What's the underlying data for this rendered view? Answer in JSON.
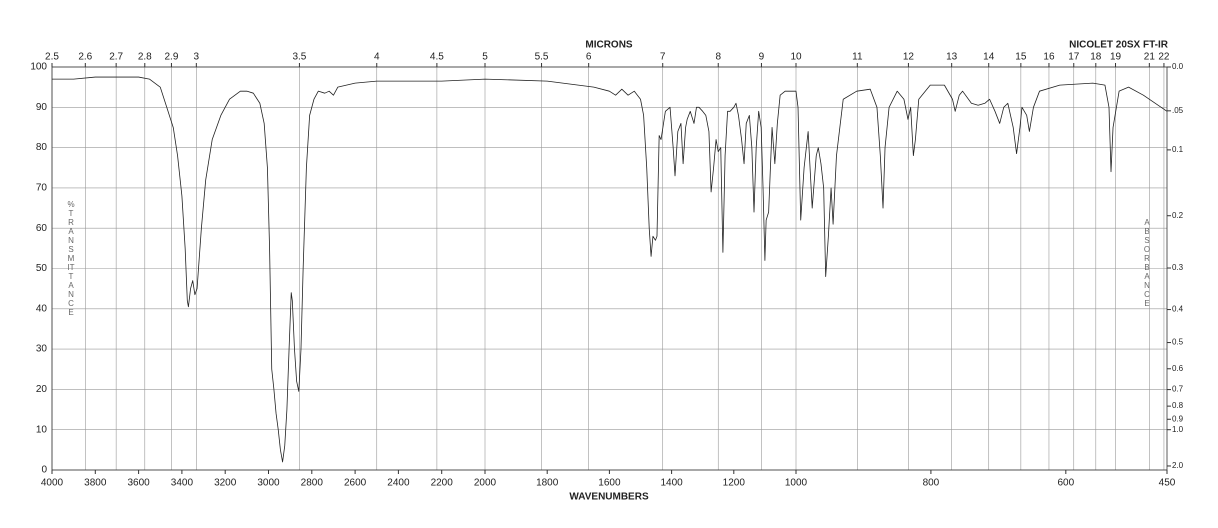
{
  "chart_data": {
    "type": "line",
    "title": "MICRONS",
    "xlabel": "WAVENUMBERS",
    "ylabel": "%TRANSMITTANCE",
    "y2label": "ABSORBANCE",
    "instrument": "NICOLET 20SX FT-IR",
    "color": "#222222",
    "grid": true,
    "xlim": [
      4000,
      450
    ],
    "ylim": [
      0,
      100
    ],
    "xticks": [
      4000,
      3800,
      3600,
      3400,
      3200,
      3000,
      2800,
      2600,
      2400,
      2200,
      2000,
      1800,
      1600,
      1400,
      1200,
      1000,
      800,
      600,
      450
    ],
    "yticks": [
      0,
      10,
      20,
      30,
      40,
      50,
      60,
      70,
      80,
      90,
      100
    ],
    "x2ticks": [
      2.5,
      2.6,
      2.7,
      2.8,
      2.9,
      3,
      3.5,
      4,
      4.5,
      5,
      5.5,
      6,
      7,
      8,
      9,
      10,
      11,
      12,
      13,
      14,
      15,
      16,
      17,
      18,
      19,
      21,
      22
    ],
    "y2ticks": [
      {
        "value": 0,
        "label": "0.0"
      },
      {
        "value": 0.05,
        "label": ".05"
      },
      0.1,
      0.2,
      0.3,
      0.4,
      0.5,
      0.6,
      0.7,
      0.8,
      0.9,
      {
        "value": 1,
        "label": "1.0"
      },
      {
        "value": 2,
        "label": "2.0"
      }
    ],
    "x": [
      4000,
      3900,
      3800,
      3700,
      3600,
      3550,
      3500,
      3470,
      3440,
      3420,
      3400,
      3385,
      3375,
      3370,
      3360,
      3350,
      3340,
      3330,
      3310,
      3290,
      3260,
      3220,
      3180,
      3130,
      3100,
      3070,
      3040,
      3020,
      3005,
      2995,
      2985,
      2975,
      2965,
      2955,
      2945,
      2935,
      2925,
      2915,
      2905,
      2895,
      2890,
      2880,
      2870,
      2860,
      2850,
      2840,
      2825,
      2810,
      2790,
      2770,
      2740,
      2720,
      2700,
      2680,
      2600,
      2500,
      2400,
      2200,
      2000,
      1800,
      1700,
      1650,
      1600,
      1580,
      1560,
      1540,
      1520,
      1500,
      1490,
      1480,
      1472,
      1466,
      1460,
      1452,
      1447,
      1440,
      1434,
      1420,
      1405,
      1395,
      1389,
      1380,
      1370,
      1363,
      1355,
      1350,
      1340,
      1328,
      1320,
      1312,
      1300,
      1290,
      1280,
      1273,
      1265,
      1257,
      1250,
      1242,
      1235,
      1228,
      1220,
      1212,
      1200,
      1193,
      1185,
      1175,
      1167,
      1160,
      1150,
      1142,
      1135,
      1128,
      1120,
      1112,
      1106,
      1100,
      1096,
      1088,
      1077,
      1068,
      1060,
      1051,
      1035,
      1019,
      1000,
      997,
      993,
      988,
      982,
      976,
      970,
      967,
      963,
      959,
      956,
      952,
      948,
      945,
      940,
      930,
      910,
      890,
      880,
      875,
      871,
      868,
      862,
      850,
      840,
      834,
      830,
      826,
      823,
      818,
      801,
      780,
      768,
      764,
      758,
      753,
      740,
      730,
      720,
      713,
      705,
      698,
      692,
      686,
      678,
      673,
      668,
      665,
      658,
      654,
      648,
      639,
      609,
      560,
      542,
      536,
      533,
      530,
      521,
      507,
      485,
      450
    ],
    "values": [
      97,
      97,
      97.5,
      97.5,
      97.5,
      97,
      95,
      90,
      85,
      78,
      68,
      55,
      42,
      40.5,
      45,
      47,
      43.5,
      45,
      60,
      72,
      82,
      88,
      92,
      94,
      94,
      93.5,
      91,
      86,
      75,
      55,
      25,
      20,
      14,
      10,
      5,
      2,
      6,
      15,
      30,
      44,
      42,
      30,
      22,
      19.5,
      30,
      50,
      75,
      88,
      92,
      94,
      93.5,
      94,
      93,
      95,
      96,
      96.5,
      96.5,
      96.5,
      97,
      96.5,
      95.5,
      95,
      94,
      93,
      94.5,
      93,
      94,
      92,
      88,
      75,
      60,
      53,
      58,
      57,
      58,
      83,
      82,
      89,
      90,
      80,
      73,
      84,
      86,
      76,
      85,
      87,
      89,
      86,
      90,
      90,
      89,
      88,
      84,
      69,
      75,
      82,
      79,
      80,
      54,
      78,
      89,
      89,
      90,
      91,
      88,
      82,
      76,
      86,
      88,
      80,
      64,
      80,
      89,
      85,
      70,
      52,
      62,
      64,
      85,
      76,
      86,
      93,
      94,
      94,
      94,
      90,
      62,
      75,
      84,
      65,
      78,
      80,
      76,
      70,
      48,
      58,
      70,
      61,
      78,
      92,
      94,
      94.5,
      90,
      78,
      65,
      80,
      90,
      94,
      92,
      87,
      90,
      78,
      82,
      92,
      95.5,
      95.5,
      92,
      89,
      93,
      94,
      91,
      90.5,
      91,
      92,
      89,
      86,
      90,
      91,
      85,
      78.5,
      85,
      90,
      88,
      84,
      90,
      94,
      95.5,
      96,
      95.5,
      90,
      74,
      85,
      94,
      95,
      93,
      89
    ]
  }
}
